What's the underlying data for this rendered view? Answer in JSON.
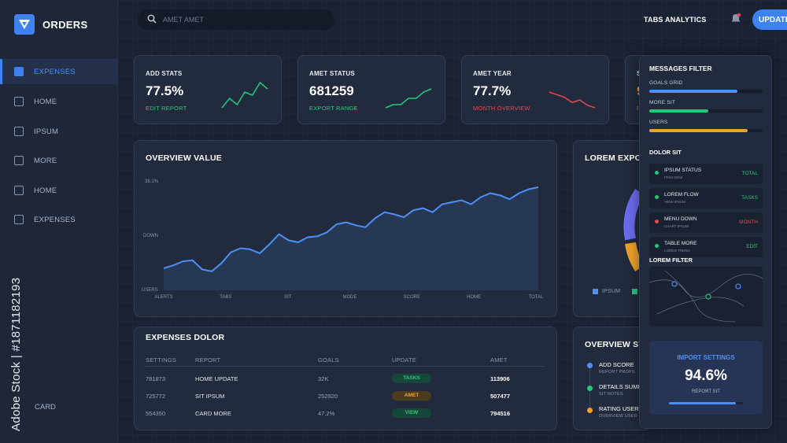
{
  "app": {
    "title": "ORDERS"
  },
  "sidebar": {
    "items": [
      {
        "label": "EXPENSES",
        "active": true
      },
      {
        "label": "HOME"
      },
      {
        "label": "IPSUM"
      },
      {
        "label": "MORE"
      },
      {
        "label": "HOME"
      },
      {
        "label": "EXPENSES"
      }
    ],
    "bottom_label": "CARD"
  },
  "search": {
    "value": "AMET AMET"
  },
  "header": {
    "tabs_analytics": "TABS ANALYTICS",
    "update_label": "UPDATE"
  },
  "stats": [
    {
      "label": "ADD STATS",
      "value": "77.5%",
      "link": "EDIT REPORT",
      "trend": "up",
      "color": "#22c97c",
      "points": [
        2,
        5,
        3,
        7,
        6,
        10,
        8
      ]
    },
    {
      "label": "AMET STATUS",
      "value": "681259",
      "link": "EXPORT RANGE",
      "trend": "up",
      "color": "#22c97c",
      "points": [
        1,
        2,
        2,
        4,
        4,
        6,
        7
      ]
    },
    {
      "label": "AMET YEAR",
      "value": "77.7%",
      "link": "MONTH OVERVIEW",
      "trend": "down",
      "color": "#e5484d",
      "points": [
        8,
        7,
        6,
        4,
        5,
        3,
        2
      ]
    },
    {
      "label": "S",
      "value": "9",
      "link": "I",
      "trend": "up",
      "color": "#f0a12b",
      "points": [
        1,
        2,
        3,
        4
      ]
    }
  ],
  "overview": {
    "title": "OVERVIEW VALUE",
    "y_labels": [
      "38.1%",
      "DOWN",
      "USERS"
    ],
    "x_labels": [
      "ALERTS",
      "TABS",
      "SIT",
      "MODE",
      "SCORE",
      "HOME",
      "TOTAL"
    ]
  },
  "chart_data": {
    "type": "area",
    "title": "OVERVIEW VALUE",
    "x_tick_labels": [
      "ALERTS",
      "TABS",
      "SIT",
      "MODE",
      "SCORE",
      "HOME",
      "TOTAL"
    ],
    "y_tick_labels": [
      "38.1%",
      "DOWN",
      "USERS"
    ],
    "series": [
      {
        "values": [
          22,
          25,
          29,
          30,
          21,
          19,
          27,
          38,
          42,
          41,
          37,
          46,
          56,
          50,
          48,
          53,
          54,
          58,
          66,
          68,
          65,
          63,
          72,
          78,
          76,
          73,
          80,
          82,
          78,
          86,
          88,
          90,
          86,
          93,
          97,
          95,
          91,
          97,
          101,
          103
        ]
      }
    ],
    "color": "#4c8ff5",
    "grid": false
  },
  "lorem_export": {
    "title": "LOREM EXPOR",
    "legend": [
      "IPSUM"
    ]
  },
  "expenses": {
    "title": "EXPENSES DOLOR",
    "columns": [
      "SETTINGS",
      "REPORT",
      "GOALS",
      "UPDATE",
      "AMET"
    ],
    "rows": [
      {
        "id": "781873",
        "report": "HOME UPDATE",
        "goals": "32K",
        "update": "TASKS",
        "update_color": "#22c97c",
        "amet": "113906"
      },
      {
        "id": "725772",
        "report": "SIT IPSUM",
        "goals": "252920",
        "update": "AMET",
        "update_color": "#f0a12b",
        "amet": "507477"
      },
      {
        "id": "554350",
        "report": "CARD MORE",
        "goals": "47.2%",
        "update": "VIEW",
        "update_color": "#22c97c",
        "amet": "794516"
      }
    ]
  },
  "overview_status": {
    "title": "OVERVIEW ST",
    "items": [
      {
        "title": "ADD SCORE",
        "sub": "REPORT PROFIL",
        "color": "#4c8ff5"
      },
      {
        "title": "DETAILS SUMI",
        "sub": "SIT NOTES",
        "color": "#22c97c"
      },
      {
        "title": "RATING USER",
        "sub": "OVERVIEW USER",
        "color": "#f0a12b"
      }
    ]
  },
  "messages_filter": {
    "title": "MESSAGES FILTER",
    "bars": [
      {
        "label": "GOALS GRID",
        "value": 0.78,
        "color": "#4c8ff5"
      },
      {
        "label": "MORE SIT",
        "value": 0.52,
        "color": "#22c97c"
      },
      {
        "label": "USERS",
        "value": 0.87,
        "color": "#f0a12b"
      }
    ],
    "dolor_title": "DOLOR SIT",
    "list": [
      {
        "title": "IPSUM STATUS",
        "sub": "ITEM VIEW",
        "tag": "TOTAL",
        "color": "#22c97c"
      },
      {
        "title": "LOREM FLOW",
        "sub": "VIEW IPSUM",
        "tag": "TASKS",
        "color": "#22c97c"
      },
      {
        "title": "MENU DOWN",
        "sub": "CHART IPSUM",
        "tag": "MONTH",
        "color": "#e5484d"
      },
      {
        "title": "TABLE MORE",
        "sub": "LOREM TREND",
        "tag": "EDIT",
        "color": "#22c97c"
      }
    ],
    "lorem_filter_title": "LOREM FILTER",
    "import": {
      "title": "IMPORT SETTINGS",
      "value": "94.6%",
      "sub": "REPORT SIT",
      "progress": 0.9
    }
  },
  "watermark": {
    "text": "Adobe Stock | #1871182193"
  }
}
